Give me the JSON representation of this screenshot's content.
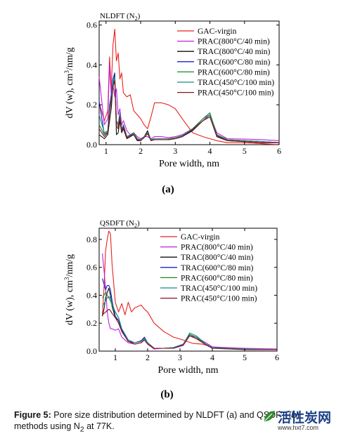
{
  "figure": {
    "caption_label": "Figure 5:",
    "caption_text": " Pore size distribution determined by NLDFT (a) and QSDFT (b) methods using N",
    "caption_sub": "2",
    "caption_tail": " at 77K.",
    "watermark": {
      "name": "活性炭网",
      "url": "www.hxt7.com"
    }
  },
  "colors": {
    "GAC-virgin": "#e8221f",
    "PRAC(800°C/40 min)": "#c21fe0",
    "TRAC(800°C/40 min)": "#111111",
    "TRAC(600°C/80 min)": "#1b22c8",
    "PRAC(600°C/80 min)": "#1d8a1d",
    "TRAC(450°C/100 min)": "#1a8a8a",
    "PRAC(450°C/100 min)": "#8a1020"
  },
  "chart_data": [
    {
      "panel_label": "(a)",
      "type": "line",
      "title": "NLDFT (N",
      "title_sub": "2",
      "title_tail": ")",
      "xlabel": "Pore width, nm",
      "ylabel_pre": "dV (w), cm",
      "ylabel_sup": "3",
      "ylabel_post": "/nm/g",
      "xlim": [
        0.8,
        6
      ],
      "ylim": [
        0,
        0.62
      ],
      "xticks": [
        "1",
        "2",
        "3",
        "4",
        "5",
        "6"
      ],
      "yticks": [
        "0.0",
        "0.2",
        "0.4",
        "0.6"
      ],
      "legend": "top-right",
      "series": [
        {
          "name": "GAC-virgin",
          "x": [
            0.8,
            0.95,
            1.05,
            1.1,
            1.15,
            1.2,
            1.25,
            1.3,
            1.35,
            1.4,
            1.45,
            1.5,
            1.6,
            1.7,
            1.8,
            1.9,
            2.0,
            2.1,
            2.2,
            2.3,
            2.4,
            2.6,
            2.8,
            3.0,
            3.2,
            3.5,
            3.8,
            4.0,
            4.2,
            4.5,
            5.0,
            5.5,
            6.0
          ],
          "y": [
            0.21,
            0.12,
            0.17,
            0.44,
            0.28,
            0.5,
            0.58,
            0.42,
            0.46,
            0.33,
            0.36,
            0.26,
            0.24,
            0.25,
            0.17,
            0.15,
            0.13,
            0.1,
            0.08,
            0.14,
            0.21,
            0.21,
            0.2,
            0.18,
            0.13,
            0.06,
            0.04,
            0.03,
            0.02,
            0.01,
            0.01,
            0.005,
            0.0
          ]
        },
        {
          "name": "PRAC(800°C/40 min)",
          "x": [
            0.8,
            0.95,
            1.05,
            1.1,
            1.15,
            1.2,
            1.25,
            1.3,
            1.35,
            1.4,
            1.45,
            1.5,
            1.6,
            1.7,
            1.8,
            1.9,
            2.0,
            2.1,
            2.2,
            2.3,
            2.4,
            2.6,
            2.8,
            3.0,
            3.2,
            3.5,
            3.8,
            4.0,
            4.2,
            4.5,
            5.0,
            5.5,
            6.0
          ],
          "y": [
            0.34,
            0.1,
            0.13,
            0.4,
            0.25,
            0.3,
            0.24,
            0.28,
            0.15,
            0.18,
            0.1,
            0.12,
            0.07,
            0.05,
            0.06,
            0.04,
            0.03,
            0.04,
            0.04,
            0.03,
            0.04,
            0.04,
            0.035,
            0.04,
            0.05,
            0.08,
            0.13,
            0.15,
            0.06,
            0.03,
            0.028,
            0.025,
            0.02
          ]
        },
        {
          "name": "TRAC(800°C/40 min)",
          "x": [
            0.8,
            0.95,
            1.05,
            1.1,
            1.15,
            1.2,
            1.25,
            1.3,
            1.35,
            1.4,
            1.45,
            1.5,
            1.6,
            1.7,
            1.8,
            1.9,
            2.0,
            2.1,
            2.2,
            2.3,
            2.4,
            2.6,
            2.8,
            3.0,
            3.2,
            3.5,
            3.8,
            4.0,
            4.2,
            4.5,
            5.0,
            5.5,
            6.0
          ],
          "y": [
            0.05,
            0.03,
            0.05,
            0.12,
            0.18,
            0.3,
            0.35,
            0.05,
            0.06,
            0.12,
            0.06,
            0.08,
            0.03,
            0.04,
            0.05,
            0.02,
            0.02,
            0.04,
            0.07,
            0.02,
            0.025,
            0.025,
            0.025,
            0.03,
            0.04,
            0.07,
            0.12,
            0.14,
            0.04,
            0.02,
            0.015,
            0.01,
            0.01
          ]
        },
        {
          "name": "TRAC(600°C/80 min)",
          "x": [
            0.8,
            0.95,
            1.05,
            1.1,
            1.15,
            1.2,
            1.25,
            1.3,
            1.35,
            1.4,
            1.45,
            1.5,
            1.6,
            1.7,
            1.8,
            1.9,
            2.0,
            2.1,
            2.2,
            2.3,
            2.4,
            2.6,
            2.8,
            3.0,
            3.2,
            3.5,
            3.8,
            4.0,
            4.2,
            4.5,
            5.0,
            5.5,
            6.0
          ],
          "y": [
            0.22,
            0.05,
            0.06,
            0.2,
            0.25,
            0.33,
            0.36,
            0.12,
            0.1,
            0.16,
            0.07,
            0.1,
            0.04,
            0.05,
            0.05,
            0.025,
            0.02,
            0.04,
            0.06,
            0.025,
            0.03,
            0.03,
            0.03,
            0.03,
            0.04,
            0.08,
            0.12,
            0.15,
            0.05,
            0.025,
            0.02,
            0.015,
            0.01
          ]
        },
        {
          "name": "PRAC(600°C/80 min)",
          "x": [
            0.8,
            0.95,
            1.05,
            1.1,
            1.15,
            1.2,
            1.25,
            1.3,
            1.35,
            1.4,
            1.45,
            1.5,
            1.6,
            1.7,
            1.8,
            1.9,
            2.0,
            2.1,
            2.2,
            2.3,
            2.4,
            2.6,
            2.8,
            3.0,
            3.2,
            3.5,
            3.8,
            4.0,
            4.2,
            4.5,
            5.0,
            5.5,
            6.0
          ],
          "y": [
            0.1,
            0.05,
            0.07,
            0.18,
            0.22,
            0.3,
            0.33,
            0.1,
            0.09,
            0.15,
            0.08,
            0.09,
            0.04,
            0.05,
            0.06,
            0.03,
            0.025,
            0.04,
            0.06,
            0.025,
            0.03,
            0.03,
            0.03,
            0.035,
            0.045,
            0.08,
            0.13,
            0.16,
            0.05,
            0.025,
            0.02,
            0.015,
            0.01
          ]
        },
        {
          "name": "TRAC(450°C/100 min)",
          "x": [
            0.8,
            0.95,
            1.05,
            1.1,
            1.15,
            1.2,
            1.25,
            1.3,
            1.35,
            1.4,
            1.45,
            1.5,
            1.6,
            1.7,
            1.8,
            1.9,
            2.0,
            2.1,
            2.2,
            2.3,
            2.4,
            2.6,
            2.8,
            3.0,
            3.2,
            3.5,
            3.8,
            4.0,
            4.2,
            4.5,
            5.0,
            5.5,
            6.0
          ],
          "y": [
            0.15,
            0.06,
            0.07,
            0.19,
            0.24,
            0.31,
            0.34,
            0.11,
            0.1,
            0.16,
            0.07,
            0.1,
            0.04,
            0.05,
            0.055,
            0.03,
            0.02,
            0.04,
            0.06,
            0.02,
            0.03,
            0.03,
            0.03,
            0.03,
            0.045,
            0.08,
            0.12,
            0.15,
            0.05,
            0.02,
            0.02,
            0.015,
            0.01
          ]
        },
        {
          "name": "PRAC(450°C/100 min)",
          "x": [
            0.8,
            0.95,
            1.05,
            1.1,
            1.15,
            1.2,
            1.25,
            1.3,
            1.35,
            1.4,
            1.45,
            1.5,
            1.6,
            1.7,
            1.8,
            1.9,
            2.0,
            2.1,
            2.2,
            2.3,
            2.4,
            2.6,
            2.8,
            3.0,
            3.2,
            3.5,
            3.8,
            4.0,
            4.2,
            4.5,
            5.0,
            5.5,
            6.0
          ],
          "y": [
            0.08,
            0.04,
            0.06,
            0.16,
            0.22,
            0.29,
            0.32,
            0.09,
            0.08,
            0.14,
            0.07,
            0.09,
            0.035,
            0.045,
            0.05,
            0.025,
            0.02,
            0.035,
            0.055,
            0.02,
            0.025,
            0.025,
            0.025,
            0.03,
            0.04,
            0.075,
            0.12,
            0.14,
            0.045,
            0.02,
            0.015,
            0.01,
            0.01
          ]
        }
      ]
    },
    {
      "panel_label": "(b)",
      "type": "line",
      "title": "QSDFT (N",
      "title_sub": "2",
      "title_tail": ")",
      "xlabel": "Pore width, nm",
      "ylabel_pre": "dV (w), cm",
      "ylabel_sup": "3",
      "ylabel_post": "/nm/g",
      "xlim": [
        0.5,
        6
      ],
      "ylim": [
        0,
        0.88
      ],
      "xticks": [
        "1",
        "2",
        "3",
        "4",
        "5",
        "6"
      ],
      "yticks": [
        "0.0",
        "0.2",
        "0.4",
        "0.6",
        "0.8"
      ],
      "legend": "top-right",
      "series": [
        {
          "name": "GAC-virgin",
          "x": [
            0.6,
            0.65,
            0.7,
            0.75,
            0.8,
            0.85,
            0.9,
            1.0,
            1.1,
            1.2,
            1.3,
            1.4,
            1.5,
            1.6,
            1.7,
            1.8,
            1.9,
            2.0,
            2.2,
            2.5,
            2.8,
            3.1,
            3.4,
            3.7,
            4.0,
            4.5,
            5.0,
            6.0
          ],
          "y": [
            0.25,
            0.45,
            0.72,
            0.8,
            0.86,
            0.84,
            0.62,
            0.35,
            0.28,
            0.34,
            0.26,
            0.35,
            0.28,
            0.31,
            0.32,
            0.33,
            0.3,
            0.28,
            0.2,
            0.14,
            0.1,
            0.08,
            0.055,
            0.05,
            0.03,
            0.02,
            0.015,
            0.01
          ]
        },
        {
          "name": "PRAC(800°C/40 min)",
          "x": [
            0.6,
            0.65,
            0.7,
            0.75,
            0.8,
            0.85,
            0.9,
            1.0,
            1.1,
            1.2,
            1.4,
            1.6,
            1.8,
            1.9,
            2.0,
            2.2,
            2.5,
            2.8,
            3.1,
            3.3,
            3.5,
            3.8,
            4.0,
            4.5,
            5.0,
            6.0
          ],
          "y": [
            0.7,
            0.58,
            0.45,
            0.28,
            0.2,
            0.16,
            0.16,
            0.15,
            0.16,
            0.1,
            0.06,
            0.05,
            0.06,
            0.08,
            0.05,
            0.015,
            0.02,
            0.02,
            0.04,
            0.11,
            0.1,
            0.06,
            0.03,
            0.025,
            0.02,
            0.015
          ]
        },
        {
          "name": "TRAC(800°C/40 min)",
          "x": [
            0.6,
            0.65,
            0.7,
            0.75,
            0.8,
            0.85,
            0.9,
            1.0,
            1.1,
            1.2,
            1.4,
            1.6,
            1.8,
            1.9,
            2.0,
            2.2,
            2.5,
            2.8,
            3.1,
            3.3,
            3.5,
            3.8,
            4.0,
            4.5,
            5.0,
            6.0
          ],
          "y": [
            0.25,
            0.3,
            0.38,
            0.42,
            0.45,
            0.4,
            0.32,
            0.24,
            0.22,
            0.15,
            0.07,
            0.06,
            0.07,
            0.09,
            0.06,
            0.02,
            0.02,
            0.025,
            0.05,
            0.11,
            0.09,
            0.05,
            0.025,
            0.02,
            0.015,
            0.01
          ]
        },
        {
          "name": "TRAC(600°C/80 min)",
          "x": [
            0.6,
            0.65,
            0.7,
            0.75,
            0.8,
            0.85,
            0.9,
            1.0,
            1.1,
            1.2,
            1.4,
            1.6,
            1.8,
            1.9,
            2.0,
            2.2,
            2.5,
            2.8,
            3.1,
            3.3,
            3.5,
            3.8,
            4.0,
            4.5,
            5.0,
            6.0
          ],
          "y": [
            0.52,
            0.48,
            0.44,
            0.47,
            0.47,
            0.44,
            0.36,
            0.25,
            0.22,
            0.15,
            0.07,
            0.06,
            0.075,
            0.1,
            0.06,
            0.02,
            0.02,
            0.025,
            0.05,
            0.12,
            0.1,
            0.05,
            0.025,
            0.02,
            0.015,
            0.01
          ]
        },
        {
          "name": "PRAC(600°C/80 min)",
          "x": [
            0.6,
            0.65,
            0.7,
            0.75,
            0.8,
            0.85,
            0.9,
            1.0,
            1.1,
            1.2,
            1.4,
            1.6,
            1.8,
            1.9,
            2.0,
            2.2,
            2.5,
            2.8,
            3.1,
            3.3,
            3.5,
            3.8,
            4.0,
            4.5,
            5.0,
            6.0
          ],
          "y": [
            0.38,
            0.4,
            0.42,
            0.4,
            0.38,
            0.36,
            0.33,
            0.28,
            0.24,
            0.16,
            0.08,
            0.06,
            0.07,
            0.09,
            0.06,
            0.02,
            0.02,
            0.025,
            0.05,
            0.12,
            0.1,
            0.05,
            0.025,
            0.02,
            0.015,
            0.01
          ]
        },
        {
          "name": "TRAC(450°C/100 min)",
          "x": [
            0.6,
            0.65,
            0.7,
            0.75,
            0.8,
            0.85,
            0.9,
            1.0,
            1.1,
            1.2,
            1.4,
            1.6,
            1.8,
            1.9,
            2.0,
            2.2,
            2.5,
            2.8,
            3.1,
            3.3,
            3.5,
            3.8,
            4.0,
            4.5,
            5.0,
            6.0
          ],
          "y": [
            0.32,
            0.34,
            0.36,
            0.38,
            0.39,
            0.38,
            0.34,
            0.28,
            0.24,
            0.16,
            0.08,
            0.06,
            0.07,
            0.09,
            0.06,
            0.02,
            0.02,
            0.025,
            0.05,
            0.13,
            0.11,
            0.05,
            0.025,
            0.02,
            0.015,
            0.01
          ]
        },
        {
          "name": "PRAC(450°C/100 min)",
          "x": [
            0.6,
            0.65,
            0.7,
            0.75,
            0.8,
            0.85,
            0.9,
            1.0,
            1.1,
            1.2,
            1.4,
            1.6,
            1.8,
            1.9,
            2.0,
            2.2,
            2.5,
            2.8,
            3.1,
            3.3,
            3.5,
            3.8,
            4.0,
            4.5,
            5.0,
            6.0
          ],
          "y": [
            0.26,
            0.27,
            0.28,
            0.29,
            0.3,
            0.29,
            0.27,
            0.24,
            0.2,
            0.14,
            0.07,
            0.05,
            0.06,
            0.08,
            0.05,
            0.02,
            0.02,
            0.02,
            0.045,
            0.11,
            0.09,
            0.045,
            0.02,
            0.015,
            0.01,
            0.01
          ]
        }
      ]
    }
  ]
}
